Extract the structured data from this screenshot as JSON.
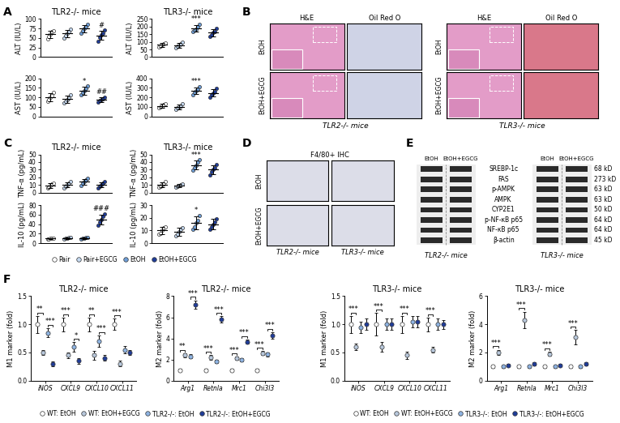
{
  "panel_labels": [
    "A",
    "B",
    "C",
    "D",
    "E",
    "F"
  ],
  "group_legend": {
    "names": [
      "Pair",
      "Pair+EGCG",
      "EtOH",
      "EtOH+EGCG"
    ],
    "colors": [
      "#ffffff",
      "#c5d9f1",
      "#6f9fd8",
      "#1f3c99"
    ],
    "legend": "lower center"
  },
  "chart_data": [
    {
      "type": "dot",
      "title": "TLR2-/- mice",
      "y_label": "ALT (IU/L)",
      "categories": [
        "Pair",
        "Pair+EGCG",
        "EtOH",
        "EtOH+EGCG"
      ],
      "values": [
        60,
        62,
        75,
        57
      ],
      "errors": [
        10,
        10,
        10,
        12
      ],
      "points": [
        [
          48,
          55,
          60,
          67,
          70
        ],
        [
          50,
          57,
          62,
          68,
          73
        ],
        [
          63,
          70,
          75,
          80,
          87
        ],
        [
          42,
          52,
          58,
          62,
          71
        ]
      ],
      "annotations": [
        null,
        null,
        null,
        "#"
      ],
      "ylim": [
        0,
        100
      ],
      "yticks": [
        0,
        25,
        50,
        75,
        100
      ],
      "tick_labels": "y"
    },
    {
      "type": "dot",
      "title": "TLR3-/- mice",
      "y_label": "ALT (IU/L)",
      "categories": [
        "Pair",
        "Pair+EGCG",
        "EtOH",
        "EtOH+EGCG"
      ],
      "values": [
        80,
        78,
        190,
        160
      ],
      "errors": [
        12,
        15,
        20,
        22
      ],
      "points": [
        [
          68,
          72,
          80,
          85,
          95
        ],
        [
          60,
          70,
          78,
          85,
          97
        ],
        [
          168,
          180,
          185,
          200,
          217
        ],
        [
          135,
          148,
          160,
          168,
          189
        ]
      ],
      "annotations": [
        null,
        null,
        "***",
        null
      ],
      "ylim": [
        0,
        250
      ],
      "yticks": [
        0,
        50,
        100,
        150,
        200,
        250
      ],
      "tick_labels": "y"
    },
    {
      "type": "dot",
      "y_label": "AST (IU/L)",
      "categories": [
        "Pair",
        "Pair+EGCG",
        "EtOH",
        "EtOH+EGCG"
      ],
      "values": [
        100,
        90,
        135,
        88
      ],
      "errors": [
        20,
        18,
        20,
        12
      ],
      "points": [
        [
          78,
          88,
          100,
          110,
          124
        ],
        [
          70,
          80,
          88,
          98,
          114
        ],
        [
          112,
          125,
          135,
          145,
          158
        ],
        [
          75,
          82,
          88,
          93,
          102
        ]
      ],
      "annotations": [
        null,
        null,
        "*",
        "##"
      ],
      "ylim": [
        0,
        200
      ],
      "yticks": [
        0,
        50,
        100,
        150,
        200
      ],
      "tick_labels": "y"
    },
    {
      "type": "dot",
      "y_label": "AST (IU/L)",
      "categories": [
        "Pair",
        "Pair+EGCG",
        "EtOH",
        "EtOH+EGCG"
      ],
      "values": [
        110,
        100,
        270,
        245
      ],
      "errors": [
        20,
        25,
        35,
        40
      ],
      "points": [
        [
          88,
          100,
          110,
          120,
          132
        ],
        [
          72,
          88,
          98,
          110,
          132
        ],
        [
          230,
          255,
          268,
          285,
          312
        ],
        [
          200,
          228,
          245,
          262,
          290
        ]
      ],
      "annotations": [
        null,
        null,
        "***",
        null
      ],
      "ylim": [
        0,
        400
      ],
      "yticks": [
        0,
        100,
        200,
        300,
        400
      ],
      "tick_labels": "y"
    },
    {
      "type": "dot",
      "title": "TLR2-/- mice",
      "y_label": "TNF-α (pg/mL)",
      "categories": [
        "Pair",
        "Pair+EGCG",
        "EtOH",
        "EtOH+EGCG"
      ],
      "values": [
        9,
        10,
        14,
        10
      ],
      "errors": [
        3,
        3,
        4,
        3
      ],
      "points": [
        [
          6,
          7,
          9,
          11,
          12
        ],
        [
          6,
          8,
          10,
          12,
          14
        ],
        [
          9,
          12,
          14,
          16,
          19
        ],
        [
          6,
          8,
          10,
          12,
          14
        ]
      ],
      "annotations": [
        null,
        null,
        null,
        null
      ],
      "ylim": [
        0,
        50
      ],
      "yticks": [
        0,
        10,
        20,
        30,
        40,
        50
      ],
      "tick_labels": "y"
    },
    {
      "type": "dot",
      "title": "TLR3-/- mice",
      "y_label": "TNF-α (pg/mL)",
      "categories": [
        "Pair",
        "Pair+EGCG",
        "EtOH",
        "EtOH+EGCG"
      ],
      "values": [
        10,
        9,
        36,
        30
      ],
      "errors": [
        3,
        2,
        6,
        6
      ],
      "points": [
        [
          7,
          8,
          10,
          11,
          14
        ],
        [
          7,
          8,
          9,
          10,
          11
        ],
        [
          29,
          32,
          36,
          40,
          43
        ],
        [
          23,
          27,
          30,
          33,
          37
        ]
      ],
      "annotations": [
        null,
        null,
        "***",
        null
      ],
      "ylim": [
        0,
        50
      ],
      "yticks": [
        0,
        10,
        20,
        30,
        40,
        50
      ],
      "tick_labels": "y"
    },
    {
      "type": "dot",
      "y_label": "IL-10 (pg/mL)",
      "categories": [
        "Pair",
        "Pair+EGCG",
        "EtOH",
        "EtOH+EGCG"
      ],
      "values": [
        10,
        11,
        11,
        50
      ],
      "errors": [
        1,
        2,
        2,
        10
      ],
      "points": [
        [
          9,
          9,
          10,
          11,
          11
        ],
        [
          9,
          10,
          11,
          12,
          13
        ],
        [
          9,
          10,
          11,
          12,
          13
        ],
        [
          38,
          44,
          50,
          56,
          62
        ]
      ],
      "annotations": [
        null,
        null,
        null,
        "###"
      ],
      "ylim": [
        0,
        80
      ],
      "yticks": [
        0,
        20,
        40,
        60,
        80
      ],
      "tick_labels": "y"
    },
    {
      "type": "dot",
      "y_label": "IL-10 (pg/mL)",
      "categories": [
        "Pair",
        "Pair+EGCG",
        "EtOH",
        "EtOH+EGCG"
      ],
      "values": [
        10,
        9,
        16,
        15
      ],
      "errors": [
        3,
        3,
        5,
        4
      ],
      "points": [
        [
          7,
          8,
          10,
          12,
          13
        ],
        [
          6,
          7,
          9,
          11,
          12
        ],
        [
          11,
          13,
          16,
          18,
          22
        ],
        [
          11,
          13,
          15,
          17,
          19
        ]
      ],
      "annotations": [
        null,
        null,
        "*",
        null
      ],
      "ylim": [
        0,
        30
      ],
      "yticks": [
        0,
        10,
        20,
        30
      ],
      "tick_labels": "y"
    },
    {
      "type": "grouped_dot",
      "title": "TLR2-/- mice",
      "y_label": "M1 marker (fold)",
      "categories": [
        "iNOS",
        "CXCL9",
        "CXCL10",
        "CXCL11"
      ],
      "series": [
        {
          "name": "WT: EtOH",
          "color": "#ffffff",
          "values": [
            1.0,
            1.0,
            1.0,
            1.0
          ],
          "errors": [
            0.15,
            0.12,
            0.12,
            0.1
          ]
        },
        {
          "name": "WT: EtOH+EGCG",
          "color": "#b8c8dc",
          "values": [
            0.5,
            0.45,
            0.45,
            0.3
          ],
          "errors": [
            0.05,
            0.05,
            0.08,
            0.05
          ]
        },
        {
          "name": "TLR2-/-: EtOH",
          "color": "#8fb4e3",
          "values": [
            0.85,
            0.6,
            0.7,
            0.55
          ],
          "errors": [
            0.08,
            0.08,
            0.1,
            0.06
          ]
        },
        {
          "name": "TLR2-/-: EtOH+EGCG",
          "color": "#1f3c99",
          "values": [
            0.3,
            0.35,
            0.4,
            0.5
          ],
          "errors": [
            0.04,
            0.05,
            0.05,
            0.05
          ]
        }
      ],
      "brackets": [
        {
          "category": 0,
          "from": 0,
          "to": 1,
          "text": "**"
        },
        {
          "category": 0,
          "from": 2,
          "to": 3,
          "text": "***"
        },
        {
          "category": 1,
          "from": 0,
          "to": 1,
          "text": "***"
        },
        {
          "category": 1,
          "from": 2,
          "to": 3,
          "text": "*"
        },
        {
          "category": 2,
          "from": 0,
          "to": 1,
          "text": "**"
        },
        {
          "category": 2,
          "from": 2,
          "to": 3,
          "text": "***"
        },
        {
          "category": 3,
          "from": 0,
          "to": 1,
          "text": "***"
        }
      ],
      "ylim": [
        0,
        1.5
      ],
      "yticks": [
        {
          "value": 0,
          "label": "0.0"
        },
        {
          "value": 0.5,
          "label": "0.5"
        },
        {
          "value": 1,
          "label": "1.0"
        },
        {
          "value": 1.5,
          "label": "1.5"
        }
      ],
      "legend": "lower center"
    },
    {
      "type": "grouped_dot",
      "title": "TLR2-/- mice",
      "y_label": "M2 marker (fold)",
      "categories": [
        "Arg1",
        "Retnla",
        "Mrc1",
        "Chi3l3"
      ],
      "series": [
        {
          "name": "WT: EtOH",
          "color": "#ffffff",
          "values": [
            1.0,
            1.0,
            1.0,
            1.0
          ],
          "errors": [
            0.1,
            0.1,
            0.1,
            0.1
          ]
        },
        {
          "name": "WT: EtOH+EGCG",
          "color": "#b8c8dc",
          "values": [
            2.4,
            2.2,
            2.1,
            2.6
          ],
          "errors": [
            0.2,
            0.2,
            0.15,
            0.2
          ]
        },
        {
          "name": "TLR2-/-: EtOH",
          "color": "#8fb4e3",
          "values": [
            2.3,
            1.8,
            2.0,
            2.5
          ],
          "errors": [
            0.2,
            0.15,
            0.15,
            0.2
          ]
        },
        {
          "name": "TLR2-/-: EtOH+EGCG",
          "color": "#1f3c99",
          "values": [
            7.2,
            5.8,
            3.7,
            4.3
          ],
          "errors": [
            0.4,
            0.3,
            0.2,
            0.3
          ]
        }
      ],
      "brackets": [
        {
          "category": 0,
          "from": 0,
          "to": 1,
          "text": "**"
        },
        {
          "category": 0,
          "from": 2,
          "to": 3,
          "text": "***"
        },
        {
          "category": 1,
          "from": 0,
          "to": 1,
          "text": "***"
        },
        {
          "category": 1,
          "from": 2,
          "to": 3,
          "text": "***"
        },
        {
          "category": 2,
          "from": 0,
          "to": 1,
          "text": "***"
        },
        {
          "category": 2,
          "from": 2,
          "to": 3,
          "text": "***"
        },
        {
          "category": 3,
          "from": 0,
          "to": 1,
          "text": "***"
        },
        {
          "category": 3,
          "from": 2,
          "to": 3,
          "text": "***"
        }
      ],
      "ylim": [
        0,
        8
      ],
      "yticks": [
        0,
        2,
        4,
        6,
        8
      ]
    },
    {
      "type": "grouped_dot",
      "title": "TLR3-/- mice",
      "y_label": "M1 marker (fold)",
      "categories": [
        "iNOS",
        "CXCL9",
        "CXCL10",
        "CXCL11"
      ],
      "series": [
        {
          "name": "WT: EtOH",
          "color": "#ffffff",
          "values": [
            1.0,
            1.0,
            1.0,
            1.0
          ],
          "errors": [
            0.15,
            0.2,
            0.15,
            0.12
          ]
        },
        {
          "name": "WT: EtOH+EGCG",
          "color": "#b8c8dc",
          "values": [
            0.6,
            0.6,
            0.45,
            0.55
          ],
          "errors": [
            0.06,
            0.08,
            0.06,
            0.05
          ]
        },
        {
          "name": "TLR3-/-: EtOH",
          "color": "#8fb4e3",
          "values": [
            0.95,
            1.0,
            1.05,
            1.0
          ],
          "errors": [
            0.1,
            0.1,
            0.1,
            0.1
          ]
        },
        {
          "name": "TLR3-/-: EtOH+EGCG",
          "color": "#1f3c99",
          "values": [
            1.0,
            1.0,
            1.05,
            1.0
          ],
          "errors": [
            0.1,
            0.1,
            0.1,
            0.08
          ]
        }
      ],
      "brackets": [
        {
          "category": 0,
          "from": 0,
          "to": 1,
          "text": "***"
        },
        {
          "category": 1,
          "from": 0,
          "to": 1,
          "text": "***"
        },
        {
          "category": 2,
          "from": 0,
          "to": 1,
          "text": "***"
        },
        {
          "category": 3,
          "from": 0,
          "to": 1,
          "text": "***"
        }
      ],
      "ylim": [
        0,
        1.5
      ],
      "yticks": [
        {
          "value": 0,
          "label": "0.0"
        },
        {
          "value": 0.5,
          "label": "0.5"
        },
        {
          "value": 1,
          "label": "1.0"
        },
        {
          "value": 1.5,
          "label": "1.5"
        }
      ],
      "legend": "lower center"
    },
    {
      "type": "grouped_dot",
      "title": "TLR3-/- mice",
      "y_label": "M2 marker (fold)",
      "categories": [
        "Arg1",
        "Retnla",
        "Mrc1",
        "Chi3l3"
      ],
      "series": [
        {
          "name": "WT: EtOH",
          "color": "#ffffff",
          "values": [
            1.0,
            1.0,
            1.0,
            1.0
          ],
          "errors": [
            0.1,
            0.1,
            0.1,
            0.1
          ]
        },
        {
          "name": "WT: EtOH+EGCG",
          "color": "#b8c8dc",
          "values": [
            2.0,
            4.3,
            1.9,
            3.1
          ],
          "errors": [
            0.2,
            0.6,
            0.15,
            0.5
          ]
        },
        {
          "name": "TLR3-/-: EtOH",
          "color": "#8fb4e3",
          "values": [
            1.0,
            1.0,
            1.0,
            1.0
          ],
          "errors": [
            0.1,
            0.1,
            0.1,
            0.1
          ]
        },
        {
          "name": "TLR3-/-: EtOH+EGCG",
          "color": "#1f3c99",
          "values": [
            1.1,
            1.2,
            1.1,
            1.2
          ],
          "errors": [
            0.1,
            0.1,
            0.1,
            0.1
          ]
        }
      ],
      "brackets": [
        {
          "category": 0,
          "from": 0,
          "to": 1,
          "text": "***"
        },
        {
          "category": 1,
          "from": 0,
          "to": 1,
          "text": "***"
        },
        {
          "category": 2,
          "from": 0,
          "to": 1,
          "text": "***"
        },
        {
          "category": 3,
          "from": 0,
          "to": 1,
          "text": "***"
        }
      ],
      "ylim": [
        0,
        6
      ],
      "yticks": [
        0,
        2,
        4,
        6
      ]
    }
  ],
  "histology": {
    "columns": [
      "H&E",
      "Oil Red O"
    ],
    "rows": [
      "EtOH",
      "EtOH+EGCG"
    ],
    "groups": [
      "TLR2-/- mice",
      "TLR3-/- mice"
    ]
  },
  "ihc": {
    "title": "F4/80+ IHC",
    "columns": [
      "TLR2-/- mice",
      "TLR3-/- mice"
    ],
    "rows": [
      "EtOH",
      "EtOH+EGCG"
    ]
  },
  "western_blot": {
    "groups": [
      "TLR2-/- mice",
      "TLR3-/- mice"
    ],
    "lanes": [
      "EtOH",
      "EtOH+EGCG"
    ],
    "proteins": [
      "SREBP-1c",
      "FAS",
      "p-AMPK",
      "AMPK",
      "CYP2E1",
      "p-NF-κB p65",
      "NF-κB p65",
      "β-actin"
    ],
    "sizes": [
      "68 kD",
      "273 kD",
      "63 kD",
      "63 kD",
      "50 kD",
      "64 kD",
      "64 kD",
      "45 kD"
    ]
  }
}
